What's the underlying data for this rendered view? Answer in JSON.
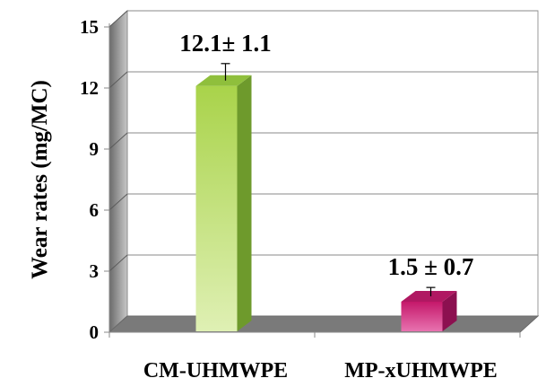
{
  "chart_data": {
    "type": "bar",
    "categories": [
      "CM-UHMWPE",
      "MP-xUHMWPE"
    ],
    "values": [
      12.1,
      1.5
    ],
    "errors": [
      1.1,
      0.7
    ],
    "data_labels": [
      "12.1± 1.1",
      "1.5 ± 0.7"
    ],
    "title": "",
    "xlabel": "",
    "ylabel": "Wear rates (mg/MC)",
    "ylim": [
      0,
      15
    ],
    "yticks": [
      0,
      3,
      6,
      9,
      12,
      15
    ],
    "grid": true,
    "style": "3d-column",
    "colors": {
      "bar1_front_top": "#a9d34a",
      "bar1_front_bottom": "#dff0b4",
      "bar1_side": "#6e9a2c",
      "bar1_top": "#8fbf3c",
      "bar2_front_top": "#c4186a",
      "bar2_front_bottom": "#e873b0",
      "bar2_side": "#8c1050",
      "bar2_top": "#b01862",
      "floor": "#7a7a7a",
      "back_wall": "#ffffff",
      "side_wall": "#9a9a9a",
      "gridline": "#8a8a8a"
    }
  }
}
